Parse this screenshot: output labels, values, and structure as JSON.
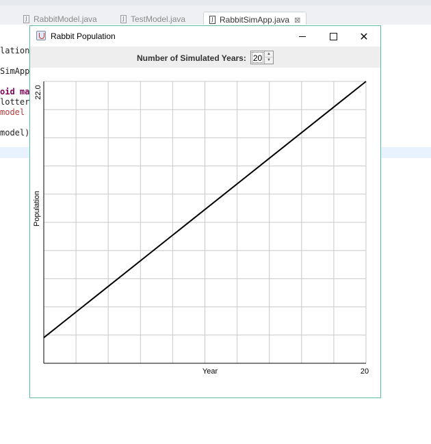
{
  "ide": {
    "tabs": [
      {
        "label": "RabbitModel.java",
        "active": false
      },
      {
        "label": "TestModel.java",
        "active": false
      },
      {
        "label": "RabbitSimApp.java",
        "active": true
      }
    ],
    "tab_icon": "J",
    "tab_close_glyph": "⊠",
    "code_fragments": [
      "lationP",
      "SimApp",
      "oid mai",
      "lotter",
      "model",
      "model);"
    ]
  },
  "window": {
    "title": "Rabbit Population",
    "icon": "java-cup-icon",
    "controls": {
      "close_glyph": "✕"
    },
    "years_label": "Number of Simulated Years:",
    "spinner_value": "20",
    "spinner_up": "▲",
    "spinner_down": "▼"
  },
  "chart_data": {
    "type": "line",
    "title": "",
    "xlabel": "Year",
    "ylabel": "Population",
    "x_tick_labels": [
      "20"
    ],
    "y_tick_labels": [
      "22.0"
    ],
    "xlim": [
      0,
      20
    ],
    "ylim": [
      0,
      22
    ],
    "grid": true,
    "series": [
      {
        "x": [
          0,
          20
        ],
        "y": [
          2,
          22
        ]
      }
    ],
    "colors": {
      "line": "#000000",
      "grid": "#c8c8c8",
      "axis": "#000000"
    }
  }
}
